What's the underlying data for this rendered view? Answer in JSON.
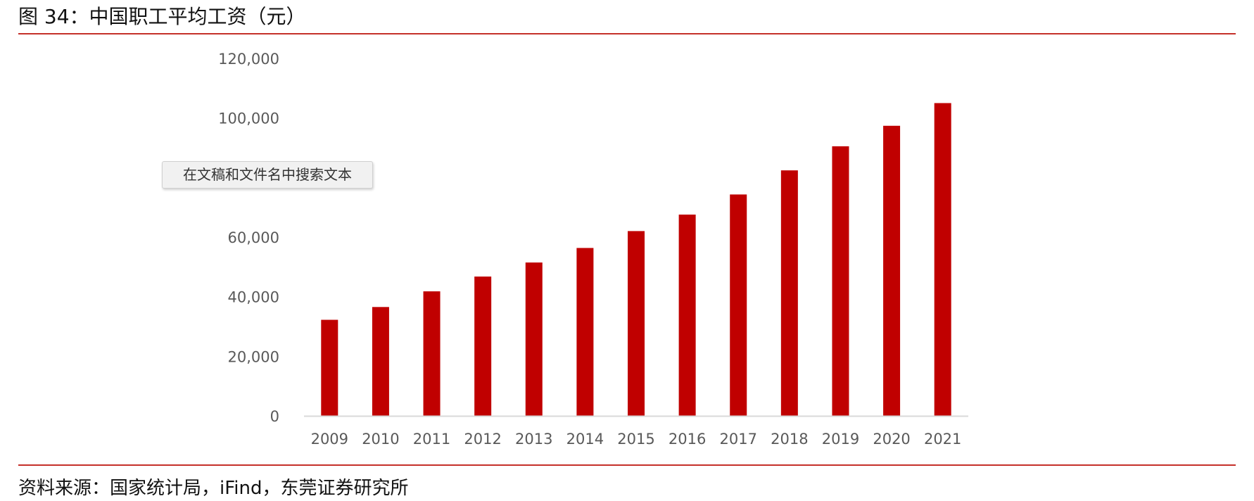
{
  "figure": {
    "title": "图 34：中国职工平均工资（元）",
    "source": "资料来源：国家统计局，iFind，东莞证券研究所",
    "tooltip": "在文稿和文件名中搜索文本"
  },
  "chart_data": {
    "type": "bar",
    "categories": [
      "2009",
      "2010",
      "2011",
      "2012",
      "2013",
      "2014",
      "2015",
      "2016",
      "2017",
      "2018",
      "2019",
      "2020",
      "2021"
    ],
    "values": [
      32244,
      36539,
      41799,
      46769,
      51483,
      56360,
      62029,
      67569,
      74318,
      82413,
      90501,
      97379,
      105000
    ],
    "yticks": [
      "0",
      "20,000",
      "40,000",
      "60,000",
      "100,000",
      "120,000"
    ],
    "ytick_values": [
      0,
      20000,
      40000,
      60000,
      100000,
      120000
    ],
    "ylim": [
      0,
      120000
    ],
    "bar_color": "#c00000",
    "axis_color": "#d9d9d9",
    "label_color": "#595959",
    "grid": false,
    "legend": "none"
  }
}
